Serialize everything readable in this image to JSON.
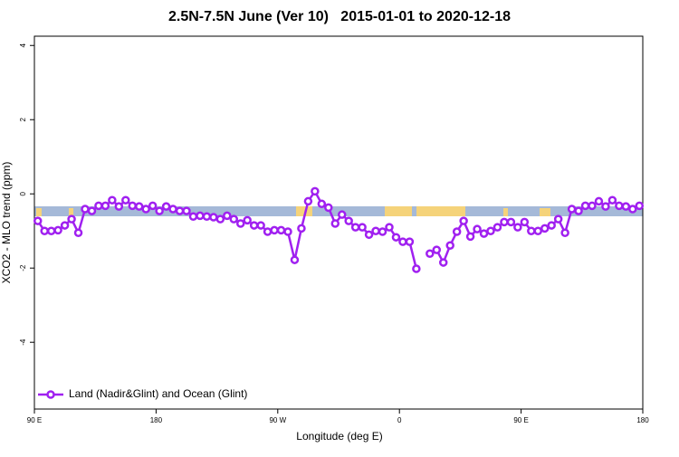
{
  "chart_data": {
    "type": "line",
    "title": "2.5N-7.5N June (Ver 10)   2015-01-01 to 2020-12-18",
    "x_label": "Longitude (deg E)",
    "y_label": "XCO2 - MLO trend (ppm)",
    "x": [
      92.5,
      97.5,
      102.5,
      107.5,
      112.5,
      117.5,
      122.5,
      127.5,
      132.5,
      137.5,
      142.5,
      147.5,
      152.5,
      157.5,
      162.5,
      167.5,
      172.5,
      177.5,
      182.5,
      187.5,
      192.5,
      197.5,
      202.5,
      207.5,
      212.5,
      217.5,
      222.5,
      227.5,
      232.5,
      237.5,
      242.5,
      247.5,
      252.5,
      257.5,
      262.5,
      267.5,
      272.5,
      277.5,
      282.5,
      287.5,
      292.5,
      297.5,
      302.5,
      307.5,
      312.5,
      317.5,
      322.5,
      327.5,
      332.5,
      337.5,
      342.5,
      347.5,
      352.5,
      357.5,
      362.5,
      367.5,
      372.5,
      377.5,
      382.5,
      387.5,
      392.5,
      397.5,
      402.5,
      407.5,
      412.5,
      417.5,
      422.5,
      427.5,
      432.5,
      437.5,
      442.5,
      447.5,
      452.5,
      457.5,
      462.5,
      467.5,
      472.5,
      477.5,
      482.5,
      487.5,
      492.5,
      497.5,
      502.5,
      507.5,
      512.5,
      517.5,
      522.5,
      527.5,
      532.5,
      537.5
    ],
    "series": [
      {
        "name": "Land (Nadir&Glint) and Ocean (Glint)",
        "color": "#a020f0",
        "values": [
          -0.73,
          -1.0,
          -1.0,
          -0.98,
          -0.85,
          -0.68,
          -1.05,
          -0.41,
          -0.46,
          -0.32,
          -0.32,
          -0.17,
          -0.34,
          -0.17,
          -0.32,
          -0.34,
          -0.41,
          -0.32,
          -0.46,
          -0.34,
          -0.41,
          -0.46,
          -0.46,
          -0.61,
          -0.59,
          -0.61,
          -0.63,
          -0.68,
          -0.59,
          -0.68,
          -0.8,
          -0.71,
          -0.85,
          -0.85,
          -1.02,
          -0.98,
          -0.98,
          -1.02,
          -1.78,
          -0.93,
          -0.2,
          0.07,
          -0.27,
          -0.37,
          -0.8,
          -0.56,
          -0.73,
          -0.9,
          -0.9,
          -1.1,
          -1.0,
          -1.02,
          -0.9,
          -1.17,
          -1.29,
          -1.29,
          -2.02,
          null,
          -1.61,
          -1.51,
          -1.85,
          -1.39,
          -1.02,
          -0.73,
          -1.15,
          -0.95,
          -1.07,
          -1.0,
          -0.9,
          -0.76,
          -0.76,
          -0.9,
          -0.76,
          -1.0,
          -1.0,
          -0.93,
          -0.85,
          -0.68,
          -1.05,
          -0.41,
          -0.46,
          -0.32,
          -0.32,
          -0.2,
          -0.34,
          -0.17,
          -0.32,
          -0.34,
          -0.41,
          -0.32
        ]
      }
    ],
    "xlim": [
      90,
      540
    ],
    "xticks": [
      {
        "value": 90,
        "label": "90 E"
      },
      180,
      {
        "value": 270,
        "label": "90 W"
      },
      {
        "value": 360,
        "label": "0"
      },
      {
        "value": 450,
        "label": "90 E"
      },
      {
        "value": 540,
        "label": "180"
      }
    ],
    "ylim": [
      -5.8,
      4.25
    ],
    "yticks": [
      -4,
      -2,
      0,
      2,
      4
    ],
    "legend": "bottom-left"
  }
}
